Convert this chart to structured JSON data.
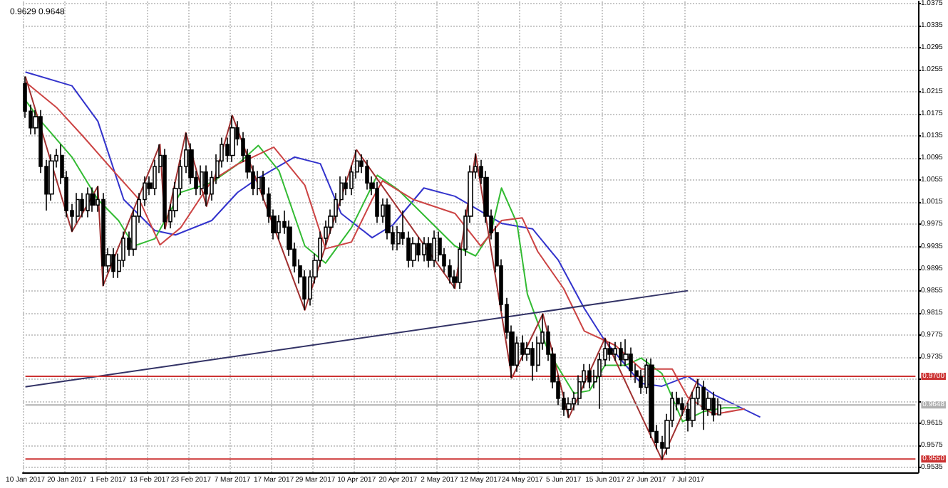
{
  "chart_data": {
    "type": "candlestick",
    "title": "0.9629 0.9648",
    "categories": [
      "10 Jan 2017",
      null,
      null,
      null,
      null,
      null,
      null,
      null,
      "20 Jan 2017",
      null,
      null,
      null,
      null,
      null,
      null,
      null,
      "1 Feb 2017",
      null,
      null,
      null,
      null,
      null,
      null,
      null,
      "13 Feb 2017",
      null,
      null,
      null,
      null,
      null,
      null,
      null,
      "23 Feb 2017",
      null,
      null,
      null,
      null,
      null,
      null,
      null,
      "7 Mar 2017",
      null,
      null,
      null,
      null,
      null,
      null,
      null,
      "17 Mar 2017",
      null,
      null,
      null,
      null,
      null,
      null,
      null,
      "29 Mar 2017",
      null,
      null,
      null,
      null,
      null,
      null,
      null,
      "10 Apr 2017",
      null,
      null,
      null,
      null,
      null,
      null,
      null,
      "20 Apr 2017",
      null,
      null,
      null,
      null,
      null,
      null,
      null,
      "2 May 2017",
      null,
      null,
      null,
      null,
      null,
      null,
      null,
      "12 May 2017",
      null,
      null,
      null,
      null,
      null,
      null,
      null,
      "24 May 2017",
      null,
      null,
      null,
      null,
      null,
      null,
      null,
      "5 Jun 2017",
      null,
      null,
      null,
      null,
      null,
      null,
      null,
      "15 Jun 2017",
      null,
      null,
      null,
      null,
      null,
      null,
      null,
      "27 Jun 2017",
      null,
      null,
      null,
      null,
      null,
      null,
      null,
      "7 Jul 2017",
      null,
      null,
      null,
      null,
      null,
      null,
      null,
      null,
      null,
      null,
      null,
      null,
      null,
      null,
      null,
      null,
      null,
      null,
      null,
      null,
      null,
      null,
      null,
      null,
      null,
      null,
      null,
      null,
      null,
      null,
      null,
      null,
      null,
      null,
      null,
      null,
      null,
      null,
      null,
      null,
      null,
      null,
      null,
      null
    ],
    "series": [
      {
        "color": "#000000",
        "ohlc": [
          [
            1.023,
            1.0243,
            1.0168,
            1.018
          ],
          [
            1.018,
            1.0192,
            1.0138,
            1.015
          ],
          [
            1.015,
            1.0182,
            1.0138,
            1.017
          ],
          [
            1.017,
            1.0182,
            1.0068,
            1.008
          ],
          [
            1.008,
            1.0092,
            1.0,
            1.003
          ],
          [
            1.003,
            1.0102,
            1.0018,
            1.009
          ],
          [
            1.009,
            1.0112,
            1.0078,
            1.01
          ],
          [
            1.01,
            1.012,
            1.0048,
            1.006
          ],
          [
            1.006,
            1.0072,
            0.9988,
            1.0
          ],
          [
            1.0,
            1.0012,
            0.9962,
            0.999
          ],
          [
            0.999,
            1.0032,
            0.9978,
            1.002
          ],
          [
            1.002,
            1.0032,
            0.9988,
            1.0
          ],
          [
            1.0,
            1.0042,
            0.9988,
            1.003
          ],
          [
            1.003,
            1.0042,
            0.9998,
            1.001
          ],
          [
            1.001,
            1.0044,
            0.9998,
            1.002
          ],
          [
            1.002,
            1.0032,
            0.9864,
            0.99
          ],
          [
            0.99,
            0.9932,
            0.9888,
            0.992
          ],
          [
            0.992,
            0.9932,
            0.9878,
            0.989
          ],
          [
            0.989,
            0.9922,
            0.9878,
            0.991
          ],
          [
            0.991,
            0.9962,
            0.9898,
            0.995
          ],
          [
            0.995,
            0.9962,
            0.9918,
            0.993
          ],
          [
            0.993,
            1.0002,
            0.9918,
            0.999
          ],
          [
            0.999,
            1.0032,
            0.9978,
            1.002
          ],
          [
            1.002,
            1.0062,
            1.0008,
            1.005
          ],
          [
            1.005,
            1.0062,
            1.0028,
            1.004
          ],
          [
            1.004,
            1.0092,
            1.0028,
            1.008
          ],
          [
            1.008,
            1.012,
            1.0068,
            1.01
          ],
          [
            1.01,
            1.0112,
            0.9967,
            0.998
          ],
          [
            0.998,
            1.0012,
            0.9968,
            1.0
          ],
          [
            1.0,
            1.0052,
            0.9988,
            1.004
          ],
          [
            1.004,
            1.0092,
            1.0028,
            1.008
          ],
          [
            1.008,
            1.0141,
            1.0068,
            1.011
          ],
          [
            1.011,
            1.0122,
            1.0048,
            1.006
          ],
          [
            1.006,
            1.0072,
            1.0028,
            1.004
          ],
          [
            1.004,
            1.0082,
            1.0028,
            1.007
          ],
          [
            1.007,
            1.0082,
            1.0008,
            1.003
          ],
          [
            1.003,
            1.0072,
            1.0018,
            1.006
          ],
          [
            1.006,
            1.0102,
            1.0048,
            1.009
          ],
          [
            1.009,
            1.0132,
            1.0078,
            1.012
          ],
          [
            1.012,
            1.0132,
            1.0088,
            1.01
          ],
          [
            1.01,
            1.0172,
            1.0088,
            1.015
          ],
          [
            1.015,
            1.0162,
            1.0118,
            1.013
          ],
          [
            1.013,
            1.0142,
            1.0088,
            1.01
          ],
          [
            1.01,
            1.0112,
            1.0058,
            1.007
          ],
          [
            1.007,
            1.0082,
            1.0028,
            1.004
          ],
          [
            1.004,
            1.0072,
            1.0028,
            1.006
          ],
          [
            1.006,
            1.0072,
            1.0018,
            1.003
          ],
          [
            1.003,
            1.0042,
            0.9978,
            0.999
          ],
          [
            0.999,
            1.0002,
            0.9948,
            0.996
          ],
          [
            0.996,
            0.9992,
            0.9948,
            0.998
          ],
          [
            0.998,
            1.0,
            0.9958,
            0.997
          ],
          [
            0.997,
            0.9982,
            0.9918,
            0.993
          ],
          [
            0.993,
            0.9942,
            0.9888,
            0.99
          ],
          [
            0.99,
            0.9912,
            0.9868,
            0.988
          ],
          [
            0.988,
            0.9892,
            0.982,
            0.984
          ],
          [
            0.984,
            0.9892,
            0.9828,
            0.988
          ],
          [
            0.988,
            0.9922,
            0.9868,
            0.991
          ],
          [
            0.991,
            0.9962,
            0.9898,
            0.995
          ],
          [
            0.995,
            0.9982,
            0.9938,
            0.997
          ],
          [
            0.997,
            1.0002,
            0.9958,
            0.999
          ],
          [
            0.999,
            1.0032,
            0.9978,
            1.002
          ],
          [
            1.002,
            1.0062,
            1.0008,
            1.005
          ],
          [
            1.005,
            1.0062,
            1.0028,
            1.004
          ],
          [
            1.004,
            1.0082,
            1.0028,
            1.007
          ],
          [
            1.007,
            1.011,
            1.0058,
            1.009
          ],
          [
            1.009,
            1.0102,
            1.0068,
            1.008
          ],
          [
            1.008,
            1.0092,
            1.0038,
            1.005
          ],
          [
            1.005,
            1.0062,
            1.0028,
            1.004
          ],
          [
            1.004,
            1.0052,
            0.9978,
            0.999
          ],
          [
            0.999,
            1.0022,
            0.9978,
            1.001
          ],
          [
            1.001,
            1.0022,
            0.9948,
            0.996
          ],
          [
            0.996,
            0.9972,
            0.9928,
            0.994
          ],
          [
            0.994,
            0.9972,
            0.9928,
            0.996
          ],
          [
            0.996,
            1.0,
            0.9938,
            0.995
          ],
          [
            0.995,
            0.9962,
            0.9897,
            0.991
          ],
          [
            0.991,
            0.9952,
            0.9898,
            0.994
          ],
          [
            0.994,
            0.9952,
            0.9908,
            0.992
          ],
          [
            0.992,
            0.9952,
            0.9908,
            0.994
          ],
          [
            0.994,
            0.9952,
            0.9897,
            0.991
          ],
          [
            0.991,
            0.9964,
            0.9898,
            0.995
          ],
          [
            0.995,
            0.9962,
            0.9908,
            0.992
          ],
          [
            0.992,
            0.9932,
            0.9888,
            0.99
          ],
          [
            0.99,
            0.9912,
            0.9868,
            0.988
          ],
          [
            0.988,
            0.9892,
            0.9859,
            0.987
          ],
          [
            0.987,
            0.9942,
            0.9858,
            0.993
          ],
          [
            0.993,
            1.0002,
            0.9918,
            0.999
          ],
          [
            0.999,
            1.0082,
            0.9978,
            1.007
          ],
          [
            1.007,
            1.0103,
            1.0058,
            1.008
          ],
          [
            1.008,
            1.0092,
            1.0048,
            1.006
          ],
          [
            1.006,
            1.0072,
            0.9978,
            0.999
          ],
          [
            0.999,
            1.0002,
            0.9948,
            0.996
          ],
          [
            0.996,
            0.9972,
            0.9888,
            0.99
          ],
          [
            0.99,
            0.9912,
            0.9818,
            0.983
          ],
          [
            0.983,
            0.9842,
            0.9768,
            0.978
          ],
          [
            0.978,
            0.9792,
            0.9697,
            0.972
          ],
          [
            0.972,
            0.9772,
            0.9708,
            0.976
          ],
          [
            0.976,
            0.9774,
            0.9728,
            0.974
          ],
          [
            0.974,
            0.9762,
            0.9728,
            0.975
          ],
          [
            0.975,
            0.9762,
            0.9692,
            0.972
          ],
          [
            0.972,
            0.9772,
            0.9708,
            0.976
          ],
          [
            0.976,
            0.9813,
            0.9748,
            0.978
          ],
          [
            0.978,
            0.9792,
            0.9728,
            0.974
          ],
          [
            0.974,
            0.9752,
            0.9678,
            0.969
          ],
          [
            0.969,
            0.9702,
            0.9648,
            0.966
          ],
          [
            0.966,
            0.9672,
            0.9628,
            0.964
          ],
          [
            0.964,
            0.9662,
            0.9625,
            0.965
          ],
          [
            0.965,
            0.9672,
            0.9638,
            0.966
          ],
          [
            0.966,
            0.9702,
            0.9648,
            0.969
          ],
          [
            0.969,
            0.9722,
            0.9678,
            0.971
          ],
          [
            0.971,
            0.9722,
            0.9678,
            0.969
          ],
          [
            0.969,
            0.9712,
            0.9678,
            0.97
          ],
          [
            0.97,
            0.9742,
            0.9641,
            0.973
          ],
          [
            0.973,
            0.9769,
            0.9718,
            0.975
          ],
          [
            0.975,
            0.9762,
            0.9728,
            0.974
          ],
          [
            0.974,
            0.9762,
            0.9728,
            0.975
          ],
          [
            0.975,
            0.9762,
            0.9718,
            0.973
          ],
          [
            0.973,
            0.9767,
            0.9718,
            0.974
          ],
          [
            0.974,
            0.9752,
            0.9698,
            0.971
          ],
          [
            0.971,
            0.9722,
            0.9688,
            0.97
          ],
          [
            0.97,
            0.9712,
            0.9668,
            0.968
          ],
          [
            0.968,
            0.9732,
            0.9668,
            0.972
          ],
          [
            0.972,
            0.9732,
            0.9588,
            0.96
          ],
          [
            0.96,
            0.9612,
            0.9568,
            0.958
          ],
          [
            0.958,
            0.9592,
            0.9549,
            0.957
          ],
          [
            0.957,
            0.9632,
            0.9558,
            0.962
          ],
          [
            0.962,
            0.9672,
            0.9608,
            0.966
          ],
          [
            0.966,
            0.9672,
            0.9638,
            0.965
          ],
          [
            0.965,
            0.9662,
            0.9628,
            0.964
          ],
          [
            0.964,
            0.9652,
            0.96,
            0.962
          ],
          [
            0.962,
            0.9672,
            0.9608,
            0.966
          ],
          [
            0.966,
            0.9695,
            0.9648,
            0.968
          ],
          [
            0.968,
            0.9692,
            0.9603,
            0.964
          ],
          [
            0.964,
            0.9672,
            0.9628,
            0.966
          ],
          [
            0.966,
            0.9672,
            0.9618,
            0.963
          ],
          [
            0.963,
            0.966,
            0.9629,
            0.9648
          ],
          null,
          null,
          null,
          null,
          null,
          null,
          null,
          null,
          null,
          null,
          null,
          null,
          null,
          null,
          null,
          null,
          null,
          null,
          null,
          null,
          null,
          null,
          null,
          null,
          null,
          null,
          null,
          null,
          null,
          null,
          null,
          null,
          null,
          null,
          null,
          null,
          null,
          null
        ]
      },
      {
        "type": "line",
        "color": "#3333cc",
        "values": [
          1.0251,
          null,
          null,
          null,
          null,
          null,
          null,
          null,
          null,
          1.0226,
          null,
          null,
          null,
          null,
          1.0162,
          null,
          null,
          null,
          null,
          1.002,
          null,
          null,
          null,
          null,
          null,
          0.9964,
          null,
          null,
          null,
          0.9956,
          null,
          null,
          null,
          null,
          null,
          null,
          0.9982,
          null,
          null,
          null,
          null,
          1.0033,
          null,
          null,
          null,
          1.0059,
          null,
          null,
          null,
          null,
          null,
          null,
          1.0097,
          null,
          null,
          null,
          null,
          1.0085,
          null,
          null,
          null,
          0.9995,
          null,
          null,
          null,
          null,
          null,
          0.9951,
          null,
          null,
          null,
          0.9974,
          null,
          null,
          null,
          null,
          null,
          1.0041,
          null,
          null,
          null,
          null,
          null,
          1.0026,
          null,
          null,
          null,
          null,
          null,
          null,
          null,
          null,
          0.9977,
          null,
          null,
          null,
          null,
          null,
          0.9967,
          null,
          null,
          null,
          null,
          0.991,
          null,
          null,
          null,
          null,
          0.9823,
          null,
          null,
          null,
          0.9764,
          null,
          null,
          null,
          null,
          null,
          null,
          0.9687,
          null,
          null,
          null,
          0.9682,
          null,
          null,
          null,
          null,
          0.97,
          null,
          null,
          null,
          null,
          0.9667,
          null,
          null,
          null,
          null,
          null,
          null,
          null,
          null,
          0.9626,
          null,
          null,
          null,
          null,
          null,
          null,
          null,
          null,
          null,
          null,
          null,
          null,
          null,
          null,
          null,
          null,
          null,
          null,
          null,
          null,
          null,
          null,
          null,
          null,
          null,
          null,
          null,
          null,
          null,
          null
        ]
      },
      {
        "type": "line",
        "color": "#33bb33",
        "values": [
          1.02,
          null,
          null,
          1.0162,
          null,
          null,
          null,
          null,
          null,
          1.0097,
          null,
          null,
          null,
          null,
          1.002,
          null,
          null,
          null,
          0.9982,
          null,
          null,
          0.9936,
          null,
          null,
          null,
          0.9949,
          null,
          null,
          null,
          null,
          1.0033,
          null,
          null,
          null,
          null,
          null,
          1.0051,
          null,
          null,
          null,
          null,
          1.0084,
          null,
          null,
          null,
          1.0118,
          null,
          null,
          null,
          1.0072,
          null,
          null,
          null,
          null,
          0.9936,
          null,
          null,
          null,
          0.9905,
          null,
          null,
          null,
          null,
          0.9969,
          null,
          null,
          null,
          null,
          1.0064,
          null,
          null,
          null,
          1.0038,
          null,
          null,
          null,
          null,
          null,
          null,
          null,
          null,
          null,
          null,
          0.9936,
          null,
          null,
          null,
          0.9918,
          null,
          null,
          0.9961,
          null,
          1.0041,
          null,
          null,
          0.9977,
          null,
          0.9849,
          null,
          null,
          null,
          0.9746,
          null,
          null,
          null,
          null,
          0.9669,
          null,
          null,
          0.9674,
          null,
          null,
          0.972,
          null,
          null,
          null,
          0.972,
          null,
          null,
          0.9733,
          null,
          null,
          null,
          0.9705,
          null,
          null,
          null,
          0.9618,
          null,
          null,
          null,
          0.9636,
          null,
          null,
          null,
          0.9643,
          null,
          null,
          0.9643,
          null,
          null,
          null,
          null,
          null,
          null,
          null,
          null,
          null,
          null,
          null,
          null,
          null,
          null,
          null,
          null,
          null,
          null,
          null,
          null,
          null,
          null,
          null,
          null,
          null,
          null,
          null,
          null,
          null,
          null,
          null,
          null,
          null,
          null
        ]
      },
      {
        "type": "line",
        "color": "#cc4444",
        "values": [
          1.0233,
          null,
          null,
          null,
          null,
          null,
          1.0187,
          null,
          null,
          null,
          null,
          1.0136,
          null,
          null,
          null,
          null,
          null,
          1.0072,
          null,
          null,
          null,
          null,
          1.002,
          null,
          null,
          null,
          0.9938,
          null,
          null,
          null,
          0.9969,
          null,
          null,
          null,
          null,
          null,
          1.0054,
          null,
          null,
          null,
          null,
          1.0084,
          null,
          null,
          null,
          null,
          null,
          null,
          1.0115,
          null,
          null,
          null,
          null,
          null,
          1.0046,
          null,
          null,
          null,
          0.9931,
          null,
          null,
          null,
          null,
          0.9943,
          null,
          null,
          null,
          1.002,
          null,
          1.0054,
          null,
          null,
          null,
          null,
          null,
          1.002,
          null,
          null,
          null,
          null,
          null,
          null,
          null,
          0.9995,
          null,
          null,
          null,
          null,
          0.9936,
          null,
          null,
          null,
          0.9982,
          null,
          null,
          null,
          0.9987,
          null,
          null,
          0.9926,
          null,
          null,
          null,
          null,
          0.9859,
          null,
          null,
          null,
          0.9782,
          null,
          null,
          null,
          null,
          null,
          0.9756,
          null,
          null,
          null,
          null,
          0.9713,
          null,
          null,
          null,
          null,
          null,
          0.9713,
          null,
          null,
          0.9662,
          null,
          null,
          null,
          null,
          0.9631,
          null,
          null,
          null,
          null,
          null,
          0.9641,
          null,
          null,
          null,
          null,
          null,
          null,
          null,
          null,
          null,
          null,
          null,
          null,
          null,
          null,
          null,
          null,
          null,
          null,
          null,
          null,
          null,
          null,
          null,
          null,
          null,
          null,
          null,
          null,
          null,
          null,
          null,
          null,
          null
        ]
      },
      {
        "type": "line",
        "color": "#a03030",
        "values": [
          1.0243,
          null,
          null,
          null,
          null,
          null,
          null,
          null,
          null,
          0.9962,
          null,
          null,
          null,
          null,
          1.0044,
          0.9864,
          null,
          null,
          null,
          null,
          null,
          null,
          null,
          null,
          null,
          null,
          1.012,
          0.9967,
          null,
          null,
          null,
          1.0141,
          null,
          null,
          null,
          1.0008,
          null,
          null,
          null,
          null,
          1.0172,
          null,
          null,
          null,
          null,
          null,
          null,
          null,
          null,
          null,
          null,
          null,
          null,
          null,
          0.982,
          null,
          null,
          null,
          null,
          null,
          null,
          null,
          null,
          null,
          1.011,
          null,
          null,
          null,
          null,
          null,
          null,
          null,
          null,
          null,
          null,
          null,
          null,
          null,
          null,
          null,
          null,
          null,
          null,
          0.9859,
          null,
          null,
          null,
          1.0103,
          null,
          null,
          null,
          null,
          null,
          null,
          0.9697,
          null,
          null,
          null,
          null,
          null,
          0.9813,
          null,
          null,
          null,
          null,
          0.9625,
          null,
          null,
          null,
          null,
          null,
          null,
          0.9769,
          null,
          null,
          null,
          null,
          null,
          null,
          null,
          null,
          null,
          null,
          0.9549,
          null,
          null,
          null,
          null,
          null,
          null,
          0.9695,
          null,
          null,
          null,
          null,
          null,
          null,
          null,
          null,
          null,
          null,
          null,
          null,
          null,
          null,
          null,
          null,
          null,
          null,
          null,
          null,
          null,
          null,
          null,
          null,
          null,
          null,
          null,
          null,
          null,
          null,
          null,
          null,
          null,
          null,
          null,
          null,
          null,
          null,
          null,
          null,
          null,
          null
        ]
      },
      {
        "type": "line",
        "color": "#333366",
        "x": [
          "10 Jan 2017",
          "7 Jul 2017"
        ],
        "values": [
          0.9681,
          0.9855
        ]
      }
    ],
    "ylim": [
      0.9526,
      1.0379
    ],
    "yticks": [
      0.9535,
      0.9575,
      0.9615,
      {
        "value": 0.9655,
        "label": null
      },
      {
        "value": 0.9695,
        "label": null
      },
      0.9735,
      0.9775,
      0.9815,
      0.9855,
      0.9895,
      0.9935,
      0.9975,
      1.0015,
      1.0055,
      1.0095,
      1.0135,
      1.0175,
      1.0215,
      1.0255,
      1.0295,
      1.0335,
      1.0375
    ],
    "ref_lines": [
      {
        "axis": "y",
        "value": 0.97,
        "label": "0.9700",
        "color": "#cc3333"
      },
      {
        "axis": "y",
        "value": 0.955,
        "label": "0.9550",
        "color": "#cc3333"
      },
      {
        "axis": "y",
        "value": 0.9648,
        "label": "0.9648",
        "color": "#b0b0b0"
      }
    ],
    "grid": true
  }
}
